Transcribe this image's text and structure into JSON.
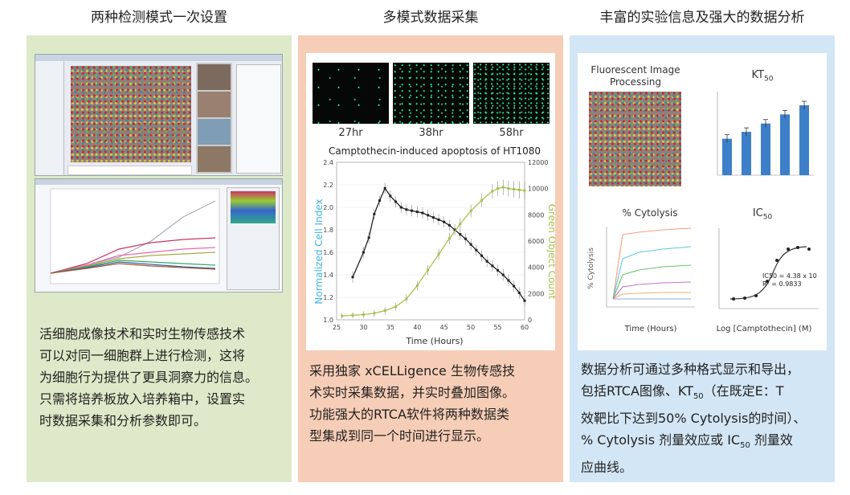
{
  "columns": [
    {
      "title": "两种检测模式一次设置",
      "text_lines": [
        "活细胞成像技术和实时生物传感技术",
        "可以对同一细胞群上进行检测，这将",
        "为细胞行为提供了更具洞察力的信息。",
        "只需将培养板放入培养箱中，设置实",
        "时数据采集和分析参数即可。"
      ]
    },
    {
      "title": "多模式数据采集",
      "text_lines": [
        "采用独家 xCELLigence 生物传感技",
        "术实时采集数据，并实时叠加图像。",
        "功能强大的RTCA软件将两种数据类",
        "型集成到同一个时间进行显示。"
      ],
      "image_labels": [
        "27hr",
        "38hr",
        "58hr"
      ]
    },
    {
      "title": "丰富的实验信息及强大的数据分析",
      "text_lines": [
        "数据分析可通过多种格式显示和导出，",
        "效靶比下达到50% Cytolysis的时间）、",
        "应曲线。"
      ],
      "text_line2_a": "包括RTCA图像、KT",
      "text_line2_sub": "50",
      "text_line2_b": "（在既定E：T",
      "text_line4_a": "% Cytolysis 剂量效应或 IC",
      "text_line4_sub": "50",
      "text_line4_b": " 剂量效",
      "fluor_title_1": "Fluorescent Image",
      "fluor_title_2": "Processing",
      "kt_label": "KT",
      "kt_sub": "50",
      "cyto_title": "% Cytolysis",
      "cyto_ylabel": "% Cytolysis",
      "cyto_xlabel": "Time (Hours)",
      "ic_label": "IC",
      "ic_sub": "50",
      "ic_xlabel": "Log [Camptothecin] (M)",
      "ic_ann_1": "IC50 = 4.38 x 10",
      "ic_ann_2": "R² = 0.9833"
    }
  ],
  "chart_data": [
    {
      "type": "line",
      "title": "Camptothecin-induced apoptosis of HT1080",
      "xlabel": "Time (Hours)",
      "ylabel": "Normalized Cell Index",
      "y2label": "Green Object Count",
      "xlim": [
        25,
        60
      ],
      "ylim": [
        1.0,
        2.4
      ],
      "y2lim": [
        0,
        12000
      ],
      "xticks": [
        25,
        30,
        35,
        40,
        45,
        50,
        55,
        60
      ],
      "yticks": [
        1.0,
        1.2,
        1.4,
        1.6,
        1.8,
        2.0,
        2.2,
        2.4
      ],
      "y2ticks": [
        0,
        2000,
        4000,
        6000,
        8000,
        10000,
        12000
      ],
      "series": [
        {
          "axis": "left",
          "color": "#222222",
          "x": [
            28,
            30,
            31,
            32,
            33,
            34,
            35,
            36,
            37,
            38,
            39,
            40,
            41,
            42,
            43,
            44,
            45,
            46,
            47,
            48,
            49,
            50,
            51,
            52,
            53,
            54,
            55,
            56,
            57,
            58,
            59,
            60
          ],
          "y": [
            1.38,
            1.6,
            1.73,
            1.94,
            2.06,
            2.17,
            2.1,
            2.05,
            2.0,
            1.98,
            1.97,
            1.96,
            1.95,
            1.93,
            1.91,
            1.89,
            1.87,
            1.84,
            1.8,
            1.76,
            1.72,
            1.67,
            1.62,
            1.57,
            1.52,
            1.48,
            1.44,
            1.4,
            1.35,
            1.3,
            1.24,
            1.17
          ]
        },
        {
          "axis": "right",
          "color": "#a8c24a",
          "x": [
            26,
            28,
            30,
            32,
            34,
            36,
            38,
            40,
            42,
            44,
            46,
            48,
            50,
            52,
            54,
            55,
            56,
            57,
            58,
            59,
            60
          ],
          "y": [
            300,
            350,
            400,
            500,
            700,
            1000,
            1600,
            2600,
            3800,
            5000,
            6200,
            7300,
            8300,
            9100,
            9800,
            10000,
            10100,
            10000,
            9950,
            9900,
            9850
          ]
        }
      ]
    },
    {
      "type": "bar",
      "categories": [
        "",
        "",
        "",
        "",
        ""
      ],
      "values": [
        48,
        57,
        68,
        80,
        92
      ],
      "ylim": [
        0,
        110
      ]
    }
  ]
}
